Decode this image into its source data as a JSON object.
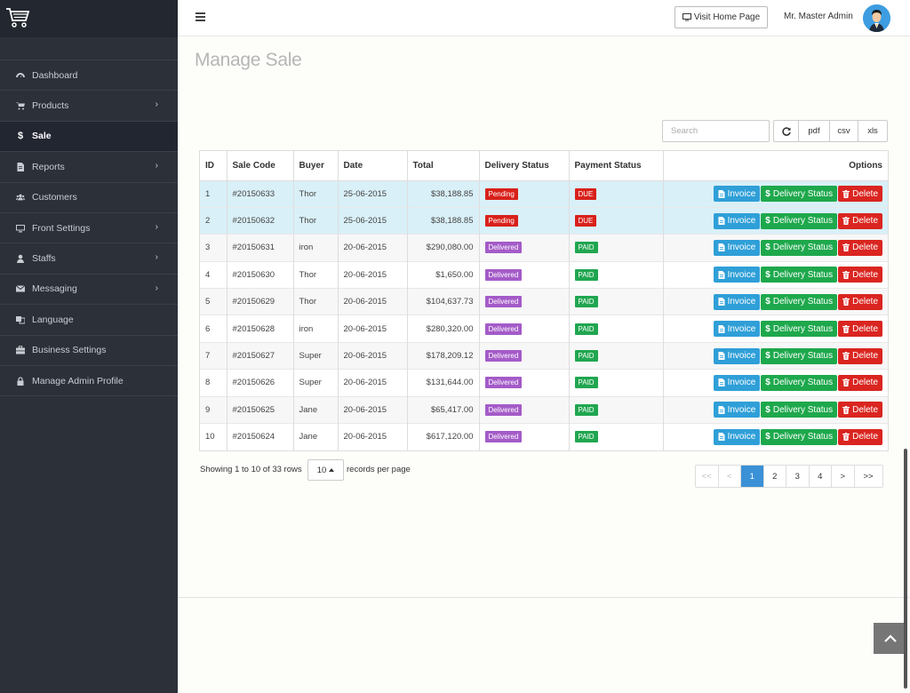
{
  "sidebar": {
    "items": [
      {
        "label": "Dashboard",
        "icon": "dashboard-icon",
        "has_children": false,
        "active": false
      },
      {
        "label": "Products",
        "icon": "cart-icon",
        "has_children": true,
        "active": false
      },
      {
        "label": "Sale",
        "icon": "dollar-icon",
        "has_children": false,
        "active": true
      },
      {
        "label": "Reports",
        "icon": "file-icon",
        "has_children": true,
        "active": false
      },
      {
        "label": "Customers",
        "icon": "users-icon",
        "has_children": false,
        "active": false
      },
      {
        "label": "Front Settings",
        "icon": "desktop-icon",
        "has_children": true,
        "active": false
      },
      {
        "label": "Staffs",
        "icon": "user-icon",
        "has_children": true,
        "active": false
      },
      {
        "label": "Messaging",
        "icon": "envelope-icon",
        "has_children": true,
        "active": false
      },
      {
        "label": "Language",
        "icon": "language-icon",
        "has_children": false,
        "active": false
      },
      {
        "label": "Business Settings",
        "icon": "briefcase-icon",
        "has_children": false,
        "active": false
      },
      {
        "label": "Manage Admin Profile",
        "icon": "lock-icon",
        "has_children": false,
        "active": false
      }
    ],
    "chevron": "›",
    "sale_symbol": "$"
  },
  "header": {
    "visit_home_label": "Visit Home Page",
    "admin_name": "Mr. Master Admin"
  },
  "page": {
    "title": "Manage Sale"
  },
  "toolbar": {
    "search_placeholder": "Search",
    "pdf_label": "pdf",
    "csv_label": "csv",
    "xls_label": "xls"
  },
  "table": {
    "headers": {
      "id": "ID",
      "sale_code": "Sale Code",
      "buyer": "Buyer",
      "date": "Date",
      "total": "Total",
      "delivery_status": "Delivery Status",
      "payment_status": "Payment Status",
      "options": "Options"
    },
    "action_labels": {
      "invoice": "Invoice",
      "delivery_status": "Delivery Status",
      "delete": "Delete"
    },
    "rows": [
      {
        "id": "1",
        "sale_code": "#20150633",
        "buyer": "Thor",
        "date": "25-06-2015",
        "total": "$38,188.85",
        "delivery": "Pending",
        "payment": "DUE"
      },
      {
        "id": "2",
        "sale_code": "#20150632",
        "buyer": "Thor",
        "date": "25-06-2015",
        "total": "$38,188.85",
        "delivery": "Pending",
        "payment": "DUE"
      },
      {
        "id": "3",
        "sale_code": "#20150631",
        "buyer": "iron",
        "date": "20-06-2015",
        "total": "$290,080.00",
        "delivery": "Delivered",
        "payment": "PAID"
      },
      {
        "id": "4",
        "sale_code": "#20150630",
        "buyer": "Thor",
        "date": "20-06-2015",
        "total": "$1,650.00",
        "delivery": "Delivered",
        "payment": "PAID"
      },
      {
        "id": "5",
        "sale_code": "#20150629",
        "buyer": "Thor",
        "date": "20-06-2015",
        "total": "$104,637.73",
        "delivery": "Delivered",
        "payment": "PAID"
      },
      {
        "id": "6",
        "sale_code": "#20150628",
        "buyer": "iron",
        "date": "20-06-2015",
        "total": "$280,320.00",
        "delivery": "Delivered",
        "payment": "PAID"
      },
      {
        "id": "7",
        "sale_code": "#20150627",
        "buyer": "Super",
        "date": "20-06-2015",
        "total": "$178,209.12",
        "delivery": "Delivered",
        "payment": "PAID"
      },
      {
        "id": "8",
        "sale_code": "#20150626",
        "buyer": "Super",
        "date": "20-06-2015",
        "total": "$131,644.00",
        "delivery": "Delivered",
        "payment": "PAID"
      },
      {
        "id": "9",
        "sale_code": "#20150625",
        "buyer": "Jane",
        "date": "20-06-2015",
        "total": "$65,417.00",
        "delivery": "Delivered",
        "payment": "PAID"
      },
      {
        "id": "10",
        "sale_code": "#20150624",
        "buyer": "Jane",
        "date": "20-06-2015",
        "total": "$617,120.00",
        "delivery": "Delivered",
        "payment": "PAID"
      }
    ]
  },
  "pagination": {
    "showing_text": "Showing 1 to 10 of 33 rows",
    "per_page_value": "10",
    "per_page_label": "records per page",
    "pages": [
      "<<",
      "<",
      "1",
      "2",
      "3",
      "4",
      ">",
      ">>"
    ],
    "current_page": "1"
  },
  "colors": {
    "sidebar_bg": "#2b3039",
    "pending": "#d9211b",
    "due": "#d9211b",
    "delivered": "#a45bc8",
    "paid": "#20a650",
    "invoice_btn": "#2f9fd8",
    "delivery_btn": "#1ea84c",
    "delete_btn": "#da2520",
    "page_active": "#3b91d6"
  }
}
